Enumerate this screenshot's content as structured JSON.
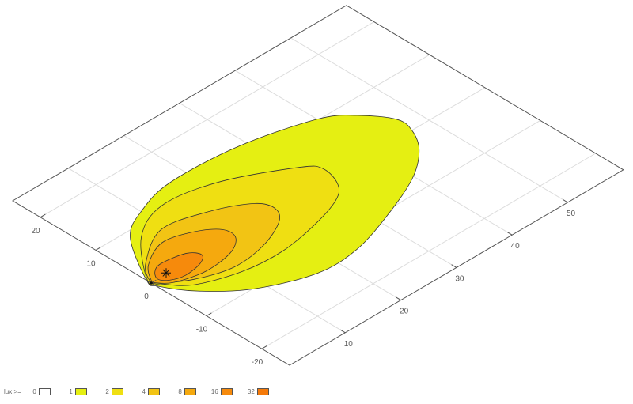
{
  "chart_data": {
    "type": "contour",
    "title": "",
    "x_axis": {
      "range": [
        0,
        60
      ],
      "ticks": [
        10,
        20,
        30,
        40,
        50
      ]
    },
    "y_axis": {
      "range": [
        -25,
        25
      ],
      "ticks": [
        20,
        10,
        0,
        -10,
        -20
      ]
    },
    "grid": true,
    "projection": "oblique perspective plane",
    "legend": {
      "title": "lux >=",
      "position": "bottom-left",
      "levels": [
        {
          "label": "0",
          "color": "#ffffff"
        },
        {
          "label": "1",
          "color": "#e5ef12"
        },
        {
          "label": "2",
          "color": "#efdf12"
        },
        {
          "label": "4",
          "color": "#f2c414"
        },
        {
          "label": "8",
          "color": "#f5a90e"
        },
        {
          "label": "16",
          "color": "#f68a0c"
        },
        {
          "label": "32",
          "color": "#f57a0a"
        }
      ]
    },
    "contours": [
      {
        "level": 1,
        "color": "#e5ef12",
        "points": [
          [
            0,
            0.8
          ],
          [
            5.1,
            8.9
          ],
          [
            10.4,
            12.0
          ],
          [
            17.2,
            13.7
          ],
          [
            28.7,
            13.1
          ],
          [
            40.0,
            10.2
          ],
          [
            44.2,
            7.2
          ],
          [
            47.2,
            3.0
          ],
          [
            46.8,
            -0.2
          ],
          [
            44.4,
            -3.8
          ],
          [
            39.6,
            -7.4
          ],
          [
            32.0,
            -10.7
          ],
          [
            23.7,
            -13.3
          ],
          [
            16.5,
            -13.4
          ],
          [
            8.4,
            -10.1
          ],
          [
            3.0,
            -5.4
          ],
          [
            0.15,
            -1.1
          ]
        ]
      },
      {
        "level": 2,
        "color": "#efdf12",
        "points": [
          [
            0,
            0.6
          ],
          [
            6.1,
            7.9
          ],
          [
            12.8,
            10.9
          ],
          [
            21.5,
            9.4
          ],
          [
            31.1,
            4.4
          ],
          [
            33.0,
            2.0
          ],
          [
            31.9,
            -1.7
          ],
          [
            29.3,
            -3.9
          ],
          [
            23.8,
            -5.7
          ],
          [
            16.8,
            -6.9
          ],
          [
            10.0,
            -6.4
          ],
          [
            3.6,
            -4.1
          ],
          [
            0.8,
            -1.05
          ]
        ]
      },
      {
        "level": 4,
        "color": "#f2c414",
        "points": [
          [
            0.2,
            0.4
          ],
          [
            2.5,
            3.5
          ],
          [
            9.1,
            7.3
          ],
          [
            16.3,
            5.7
          ],
          [
            21.5,
            2.9
          ],
          [
            22.6,
            0.3
          ],
          [
            20.9,
            -2.1
          ],
          [
            15.9,
            -4.3
          ],
          [
            10.0,
            -5.0
          ],
          [
            4.5,
            -3.3
          ],
          [
            0.6,
            -0.6
          ]
        ]
      },
      {
        "level": 8,
        "color": "#f5a90e",
        "points": [
          [
            0.3,
            0.2
          ],
          [
            2.5,
            3.0
          ],
          [
            7.1,
            5.2
          ],
          [
            11.7,
            4.0
          ],
          [
            14.6,
            1.8
          ],
          [
            14.6,
            -0.6
          ],
          [
            11.7,
            -2.5
          ],
          [
            6.7,
            -3.1
          ],
          [
            2.1,
            -1.9
          ],
          [
            0.4,
            -0.3
          ]
        ]
      },
      {
        "level": 16,
        "color": "#f68a0c",
        "points": [
          [
            1.2,
            0.05
          ],
          [
            2.2,
            1.5
          ],
          [
            3.95,
            2.1
          ],
          [
            7.7,
            1.4
          ],
          [
            8.9,
            -0.2
          ],
          [
            7.4,
            -1.4
          ],
          [
            4.3,
            -1.9
          ],
          [
            2.1,
            -1.2
          ]
        ]
      }
    ],
    "maximum_marker": {
      "x": 2.9,
      "y": 0.2,
      "symbol": "asterisk"
    },
    "source_point": {
      "x": 0,
      "y": 0
    }
  }
}
